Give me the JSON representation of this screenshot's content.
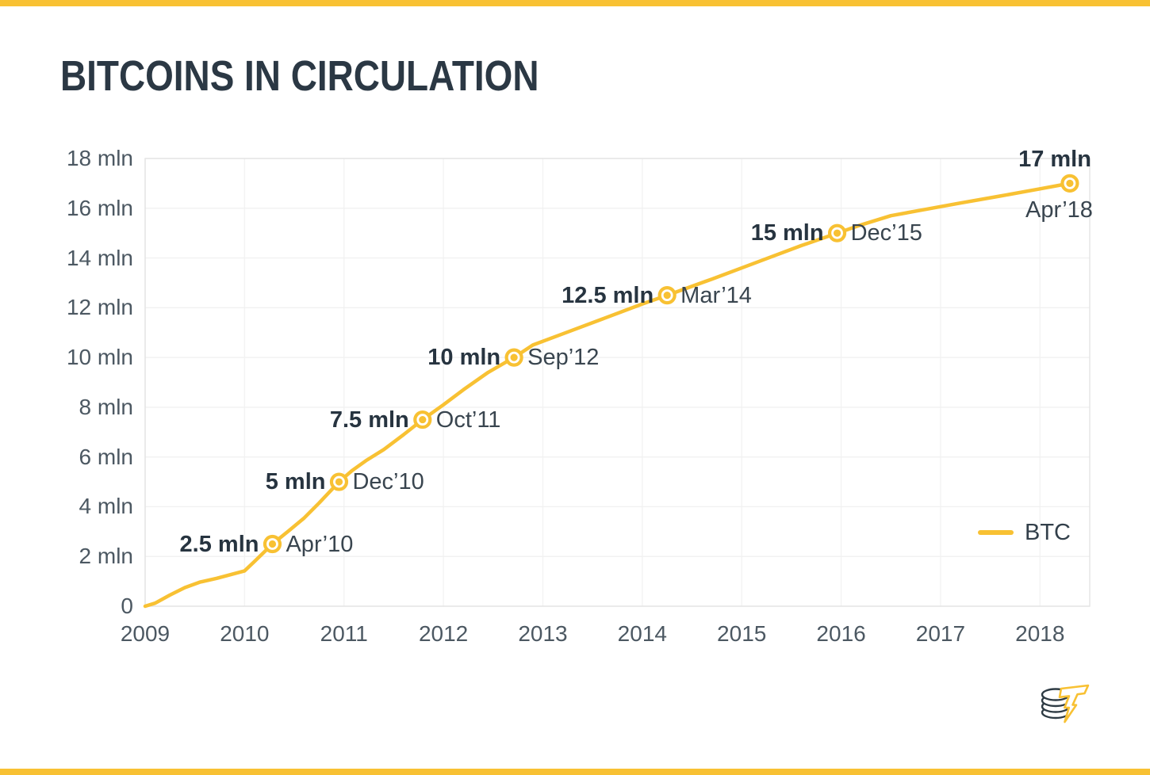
{
  "page": {
    "accent_color": "#F8C133",
    "background_color": "#FFFFFF",
    "text_color_dark": "#2B3844",
    "text_color_tick": "#4C5862"
  },
  "logo": {
    "name": "cointelegraph-coins-lightning-logo"
  },
  "chart_data": {
    "type": "line",
    "title": "BITCOINS IN CIRCULATION",
    "grid": true,
    "legend_position": "right-middle",
    "x_axis": {
      "min": 2009,
      "max": 2018.5,
      "ticks": [
        {
          "value": 2009,
          "label": "2009"
        },
        {
          "value": 2010,
          "label": "2010"
        },
        {
          "value": 2011,
          "label": "2011"
        },
        {
          "value": 2012,
          "label": "2012"
        },
        {
          "value": 2013,
          "label": "2013"
        },
        {
          "value": 2014,
          "label": "2014"
        },
        {
          "value": 2015,
          "label": "2015"
        },
        {
          "value": 2016,
          "label": "2016"
        },
        {
          "value": 2017,
          "label": "2017"
        },
        {
          "value": 2018,
          "label": "2018"
        }
      ]
    },
    "y_axis": {
      "min": 0,
      "max": 18,
      "unit": "mln",
      "ticks": [
        {
          "value": 0,
          "label": "0"
        },
        {
          "value": 2,
          "label": "2 mln"
        },
        {
          "value": 4,
          "label": "4 mln"
        },
        {
          "value": 6,
          "label": "6 mln"
        },
        {
          "value": 8,
          "label": "8 mln"
        },
        {
          "value": 10,
          "label": "10 mln"
        },
        {
          "value": 12,
          "label": "12 mln"
        },
        {
          "value": 14,
          "label": "14 mln"
        },
        {
          "value": 16,
          "label": "16 mln"
        },
        {
          "value": 18,
          "label": "18 mln"
        }
      ]
    },
    "series": [
      {
        "name": "BTC",
        "color": "#F8C133",
        "points": [
          [
            2009.0,
            0.0
          ],
          [
            2009.1,
            0.12
          ],
          [
            2009.25,
            0.45
          ],
          [
            2009.4,
            0.75
          ],
          [
            2009.55,
            0.97
          ],
          [
            2009.72,
            1.12
          ],
          [
            2010.0,
            1.42
          ],
          [
            2010.1,
            1.8
          ],
          [
            2010.28,
            2.5
          ],
          [
            2010.45,
            3.05
          ],
          [
            2010.6,
            3.55
          ],
          [
            2010.75,
            4.15
          ],
          [
            2010.95,
            5.0
          ],
          [
            2011.08,
            5.45
          ],
          [
            2011.22,
            5.85
          ],
          [
            2011.4,
            6.3
          ],
          [
            2011.6,
            6.9
          ],
          [
            2011.79,
            7.5
          ],
          [
            2012.0,
            8.1
          ],
          [
            2012.2,
            8.7
          ],
          [
            2012.45,
            9.4
          ],
          [
            2012.71,
            10.0
          ],
          [
            2012.9,
            10.5
          ],
          [
            2013.2,
            10.95
          ],
          [
            2013.6,
            11.55
          ],
          [
            2014.0,
            12.15
          ],
          [
            2014.25,
            12.5
          ],
          [
            2014.7,
            13.15
          ],
          [
            2015.2,
            13.9
          ],
          [
            2015.6,
            14.5
          ],
          [
            2015.96,
            15.0
          ],
          [
            2016.2,
            15.33
          ],
          [
            2016.5,
            15.7
          ],
          [
            2016.8,
            15.92
          ],
          [
            2017.2,
            16.21
          ],
          [
            2017.6,
            16.49
          ],
          [
            2018.0,
            16.78
          ],
          [
            2018.3,
            17.0
          ]
        ]
      }
    ],
    "annotations": [
      {
        "value_label": "2.5 mln",
        "date_label": "Apr’10",
        "x": 2010.28,
        "y": 2.5,
        "layout": "side"
      },
      {
        "value_label": "5 mln",
        "date_label": "Dec’10",
        "x": 2010.95,
        "y": 5,
        "layout": "side"
      },
      {
        "value_label": "7.5 mln",
        "date_label": "Oct’11",
        "x": 2011.79,
        "y": 7.5,
        "layout": "side"
      },
      {
        "value_label": "10 mln",
        "date_label": "Sep’12",
        "x": 2012.71,
        "y": 10,
        "layout": "side"
      },
      {
        "value_label": "12.5 mln",
        "date_label": "Mar’14",
        "x": 2014.25,
        "y": 12.5,
        "layout": "side"
      },
      {
        "value_label": "15 mln",
        "date_label": "Dec’15",
        "x": 2015.96,
        "y": 15,
        "layout": "side"
      },
      {
        "value_label": "17 mln",
        "date_label": "Apr’18",
        "x": 2018.3,
        "y": 17,
        "layout": "stacked"
      }
    ]
  }
}
